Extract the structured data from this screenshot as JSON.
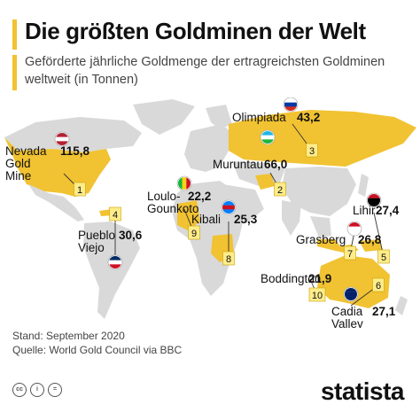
{
  "header": {
    "title": "Die größten Goldminen der Welt",
    "subtitle": "Geförderte jährliche Goldmenge der ertragreichsten Goldminen weltweit (in Tonnen)"
  },
  "colors": {
    "accent": "#f1c232",
    "land": "#d9d9d9",
    "text": "#111111"
  },
  "chart_data": {
    "type": "map",
    "title": "Die größten Goldminen der Welt",
    "subtitle": "Geförderte jährliche Goldmenge der ertragreichsten Goldminen weltweit (in Tonnen)",
    "unit": "Tonnen",
    "mines": [
      {
        "rank": 1,
        "name": "Nevada Gold Mine",
        "name_lines": [
          "Nevada",
          "Gold",
          "Mine"
        ],
        "value": 115.8,
        "value_label": "115,8",
        "flag": "usa-flag"
      },
      {
        "rank": 2,
        "name": "Muruntau",
        "name_lines": [
          "Muruntau"
        ],
        "value": 66.0,
        "value_label": "66,0",
        "flag": "uzbekistan-flag"
      },
      {
        "rank": 3,
        "name": "Olimpiada",
        "name_lines": [
          "Olimpiada"
        ],
        "value": 43.2,
        "value_label": "43,2",
        "flag": "russia-flag"
      },
      {
        "rank": 4,
        "name": "Pueblo Viejo",
        "name_lines": [
          "Pueblo",
          "Viejo"
        ],
        "value": 30.6,
        "value_label": "30,6",
        "flag": "dominican-republic-flag"
      },
      {
        "rank": 5,
        "name": "Lihir",
        "name_lines": [
          "Lihir"
        ],
        "value": 27.4,
        "value_label": "27,4",
        "flag": "papua-new-guinea-flag"
      },
      {
        "rank": 6,
        "name": "Cadia Valley",
        "name_lines": [
          "Cadia",
          "Valley"
        ],
        "value": 27.1,
        "value_label": "27,1",
        "flag": "australia-flag"
      },
      {
        "rank": 7,
        "name": "Grasberg",
        "name_lines": [
          "Grasberg"
        ],
        "value": 26.8,
        "value_label": "26,8",
        "flag": "indonesia-flag"
      },
      {
        "rank": 8,
        "name": "Kibali",
        "name_lines": [
          "Kibali"
        ],
        "value": 25.3,
        "value_label": "25,3",
        "flag": "dr-congo-flag"
      },
      {
        "rank": 9,
        "name": "Loulo-Gounkoto",
        "name_lines": [
          "Loulo-",
          "Gounkoto"
        ],
        "value": 22.2,
        "value_label": "22,2",
        "flag": "mali-flag"
      },
      {
        "rank": 10,
        "name": "Boddington",
        "name_lines": [
          "Boddington"
        ],
        "value": 21.9,
        "value_label": "21,9",
        "flag": "australia-flag"
      }
    ]
  },
  "footer": {
    "stand": "Stand: September 2020",
    "quelle": "Quelle: World Gold Council via BBC",
    "logo": "statista",
    "license_icons": [
      "cc",
      "i",
      "="
    ]
  }
}
